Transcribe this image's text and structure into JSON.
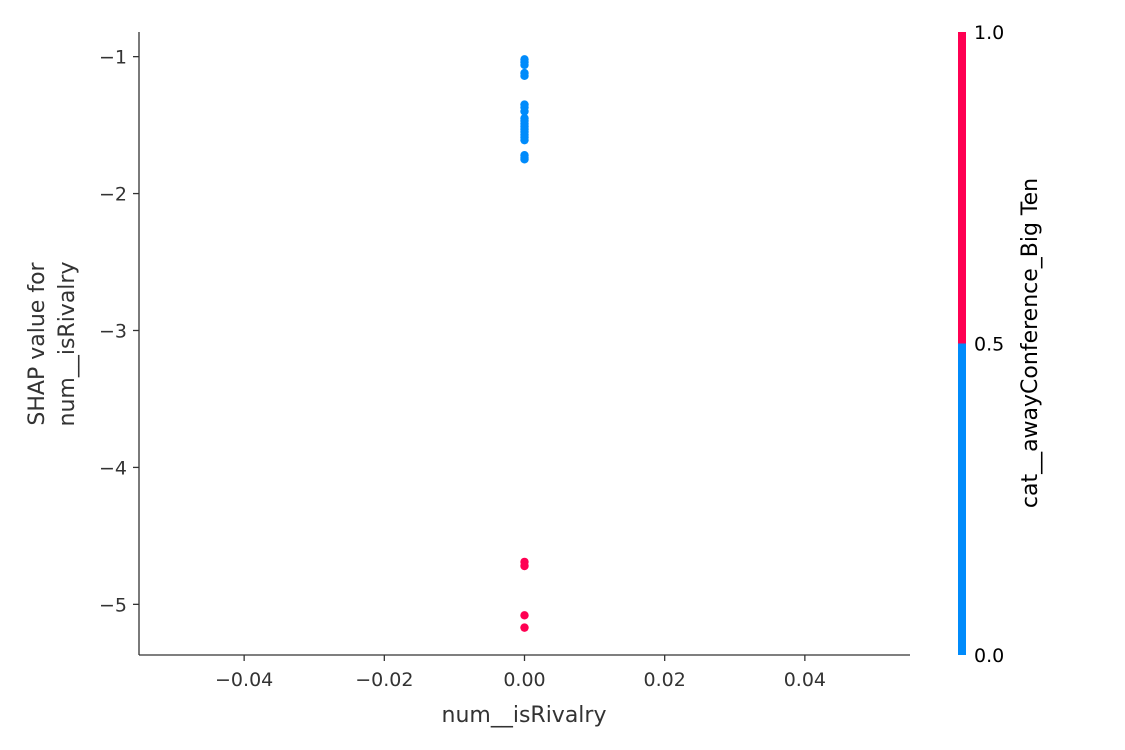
{
  "chart_data": {
    "type": "scatter",
    "title": "",
    "xlabel": "num__isRivalry",
    "ylabel_lines": [
      "SHAP value for",
      "num__isRivalry"
    ],
    "xlim": [
      -0.055,
      0.055
    ],
    "ylim": [
      -5.37,
      -0.82
    ],
    "x_ticks": [
      -0.04,
      -0.02,
      0.0,
      0.02,
      0.04
    ],
    "x_tick_labels": [
      "−0.04",
      "−0.02",
      "0.00",
      "0.02",
      "0.04"
    ],
    "y_ticks": [
      -1,
      -2,
      -3,
      -4,
      -5
    ],
    "y_tick_labels": [
      "−1",
      "−2",
      "−3",
      "−4",
      "−5"
    ],
    "grid": false,
    "colorbar": {
      "label": "cat__awayConference_Big Ten",
      "ticks": [
        0.0,
        0.5,
        1.0
      ],
      "tick_labels": [
        "0.0",
        "0.5",
        "1.0"
      ],
      "low_color": "#008bfb",
      "high_color": "#ff0052"
    },
    "series": [
      {
        "color": "#008bfb",
        "feature_value": 0,
        "points": [
          [
            0,
            -1.02
          ],
          [
            0,
            -1.04
          ],
          [
            0,
            -1.06
          ],
          [
            0,
            -1.12
          ],
          [
            0,
            -1.14
          ],
          [
            0,
            -1.35
          ],
          [
            0,
            -1.37
          ],
          [
            0,
            -1.4
          ],
          [
            0,
            -1.45
          ],
          [
            0,
            -1.47
          ],
          [
            0,
            -1.49
          ],
          [
            0,
            -1.51
          ],
          [
            0,
            -1.53
          ],
          [
            0,
            -1.55
          ],
          [
            0,
            -1.57
          ],
          [
            0,
            -1.59
          ],
          [
            0,
            -1.61
          ],
          [
            0,
            -1.72
          ],
          [
            0,
            -1.74
          ],
          [
            0,
            -1.75
          ]
        ]
      },
      {
        "color": "#ff0052",
        "feature_value": 1,
        "points": [
          [
            0,
            -4.69
          ],
          [
            0,
            -4.72
          ],
          [
            0,
            -5.08
          ],
          [
            0,
            -5.17
          ]
        ]
      }
    ]
  }
}
